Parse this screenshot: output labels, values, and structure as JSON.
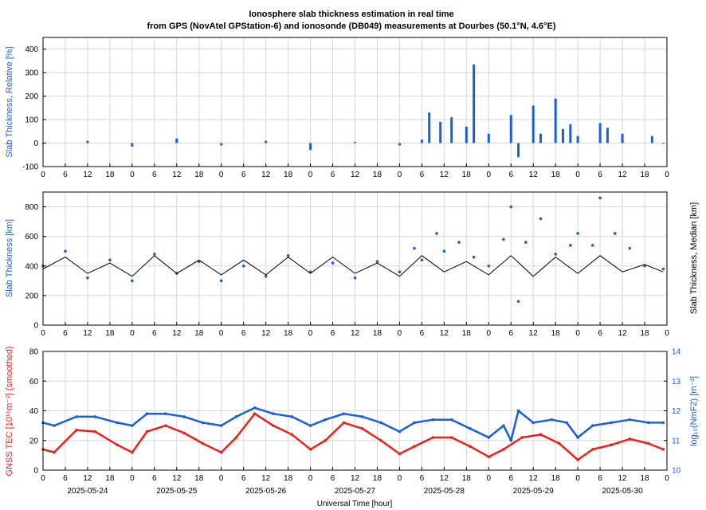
{
  "title": {
    "line1": "Ionosphere slab thickness estimation in real time",
    "line2": "from GPS (NovAtel GPStation-6) and ionosonde (DB049) measurements at Dourbes (50.1°N, 4.6°E)"
  },
  "colors": {
    "blue": "#1a5fd6",
    "red": "#e8231c",
    "black": "#000000",
    "grid": "#d8d8d8"
  },
  "chart_data": [
    {
      "type": "bar",
      "ylabel": "Slab Thickness, Relative [%]",
      "ylim": [
        -100,
        450
      ],
      "yticks": [
        "-100",
        "0",
        "100",
        "200",
        "300",
        "400"
      ],
      "hour_ticks": [
        "0",
        "6",
        "12",
        "18",
        "0",
        "6",
        "12",
        "18",
        "0",
        "6",
        "12",
        "18",
        "0",
        "6",
        "12",
        "18",
        "0",
        "6",
        "12",
        "18",
        "0",
        "6",
        "12",
        "18",
        "0",
        "6",
        "12",
        "18",
        "0"
      ],
      "grid": true,
      "series": [
        {
          "color": "#1a5fd6",
          "x": [
            0,
            12,
            24,
            36,
            48,
            60,
            72,
            84,
            96,
            102,
            104,
            107,
            110,
            114,
            116,
            120,
            126,
            128,
            132,
            134,
            138,
            140,
            142,
            144,
            150,
            152,
            156,
            164,
            167
          ],
          "values": [
            0,
            10,
            -15,
            20,
            -10,
            10,
            -30,
            5,
            -10,
            15,
            130,
            90,
            110,
            70,
            335,
            40,
            120,
            -60,
            160,
            40,
            190,
            60,
            80,
            30,
            85,
            65,
            40,
            30,
            0
          ]
        }
      ]
    },
    {
      "type": "scatter",
      "ylabel": "Slab Thickness [km]",
      "ylabel_right": "Slab Thickness, Median [km]",
      "ylim": [
        0,
        900
      ],
      "yticks": [
        "0",
        "200",
        "400",
        "600",
        "800"
      ],
      "hour_ticks": [
        "0",
        "6",
        "12",
        "18",
        "0",
        "6",
        "12",
        "18",
        "0",
        "6",
        "12",
        "18",
        "0",
        "6",
        "12",
        "18",
        "0",
        "6",
        "12",
        "18",
        "0",
        "6",
        "12",
        "18",
        "0",
        "6",
        "12",
        "18",
        "0"
      ],
      "grid": true,
      "series": [
        {
          "color": "#1a5fd6",
          "style": "points",
          "x": [
            0,
            6,
            12,
            18,
            24,
            30,
            36,
            42,
            48,
            54,
            60,
            66,
            72,
            78,
            84,
            90,
            96,
            100,
            102,
            106,
            108,
            112,
            116,
            120,
            124,
            126,
            128,
            130,
            134,
            138,
            142,
            144,
            148,
            150,
            154,
            158,
            162,
            167
          ],
          "values": [
            400,
            500,
            320,
            440,
            300,
            480,
            350,
            430,
            300,
            400,
            330,
            470,
            360,
            420,
            320,
            430,
            360,
            520,
            440,
            620,
            500,
            560,
            460,
            400,
            580,
            800,
            160,
            560,
            720,
            480,
            540,
            620,
            540,
            860,
            620,
            520,
            400,
            380
          ]
        },
        {
          "color": "#000000",
          "style": "line",
          "x": [
            0,
            6,
            12,
            18,
            24,
            30,
            36,
            42,
            48,
            54,
            60,
            66,
            72,
            78,
            84,
            90,
            96,
            102,
            108,
            114,
            120,
            126,
            132,
            138,
            144,
            150,
            156,
            162,
            167
          ],
          "values": [
            380,
            460,
            350,
            420,
            330,
            470,
            350,
            440,
            340,
            440,
            340,
            460,
            350,
            460,
            350,
            420,
            330,
            470,
            360,
            430,
            340,
            470,
            330,
            460,
            350,
            470,
            360,
            410,
            360
          ]
        }
      ]
    },
    {
      "type": "scatter",
      "ylabel": "GNSS TEC [10¹⁶m⁻²] (smoothed)",
      "ylabel_right": "log₁₀(NmF2) [m⁻³]",
      "ylim": [
        0,
        80
      ],
      "ylim_right": [
        10,
        14
      ],
      "yticks": [
        "0",
        "20",
        "40",
        "60",
        "80"
      ],
      "yticks_right": [
        "10",
        "11",
        "12",
        "13",
        "14"
      ],
      "hour_ticks": [
        "0",
        "6",
        "12",
        "18",
        "0",
        "6",
        "12",
        "18",
        "0",
        "6",
        "12",
        "18",
        "0",
        "6",
        "12",
        "18",
        "0",
        "6",
        "12",
        "18",
        "0",
        "6",
        "12",
        "18",
        "0",
        "6",
        "12",
        "18",
        "0"
      ],
      "date_labels": [
        "2025-05-24",
        "2025-05-25",
        "2025-05-26",
        "2025-05-27",
        "2025-05-28",
        "2025-05-29",
        "2025-05-30"
      ],
      "xlabel": "Universal Time [hour]",
      "grid": true,
      "series": [
        {
          "color": "#e8231c",
          "axis": "left",
          "x": [
            0,
            3,
            9,
            14,
            20,
            24,
            28,
            33,
            38,
            43,
            48,
            52,
            57,
            62,
            67,
            72,
            76,
            81,
            86,
            91,
            96,
            100,
            105,
            110,
            115,
            120,
            124,
            129,
            134,
            139,
            144,
            148,
            153,
            158,
            163,
            167
          ],
          "values": [
            14,
            12,
            27,
            26,
            17,
            12,
            26,
            30,
            25,
            18,
            12,
            22,
            38,
            30,
            24,
            14,
            20,
            32,
            28,
            20,
            11,
            16,
            22,
            22,
            16,
            9,
            14,
            22,
            24,
            18,
            7,
            14,
            17,
            21,
            18,
            14
          ]
        },
        {
          "color": "#1a5fd6",
          "axis": "right",
          "x": [
            0,
            3,
            9,
            14,
            20,
            24,
            28,
            33,
            38,
            43,
            48,
            52,
            57,
            62,
            67,
            72,
            76,
            81,
            86,
            91,
            96,
            100,
            105,
            110,
            115,
            120,
            124,
            126,
            128,
            132,
            137,
            141,
            144,
            148,
            153,
            158,
            163,
            167
          ],
          "values": [
            11.6,
            11.5,
            11.8,
            11.8,
            11.6,
            11.5,
            11.9,
            11.9,
            11.8,
            11.6,
            11.5,
            11.8,
            12.1,
            11.9,
            11.8,
            11.5,
            11.7,
            11.9,
            11.8,
            11.6,
            11.3,
            11.6,
            11.7,
            11.7,
            11.4,
            11.1,
            11.5,
            11.0,
            12.0,
            11.6,
            11.7,
            11.6,
            11.1,
            11.5,
            11.6,
            11.7,
            11.6,
            11.6
          ]
        }
      ]
    }
  ]
}
